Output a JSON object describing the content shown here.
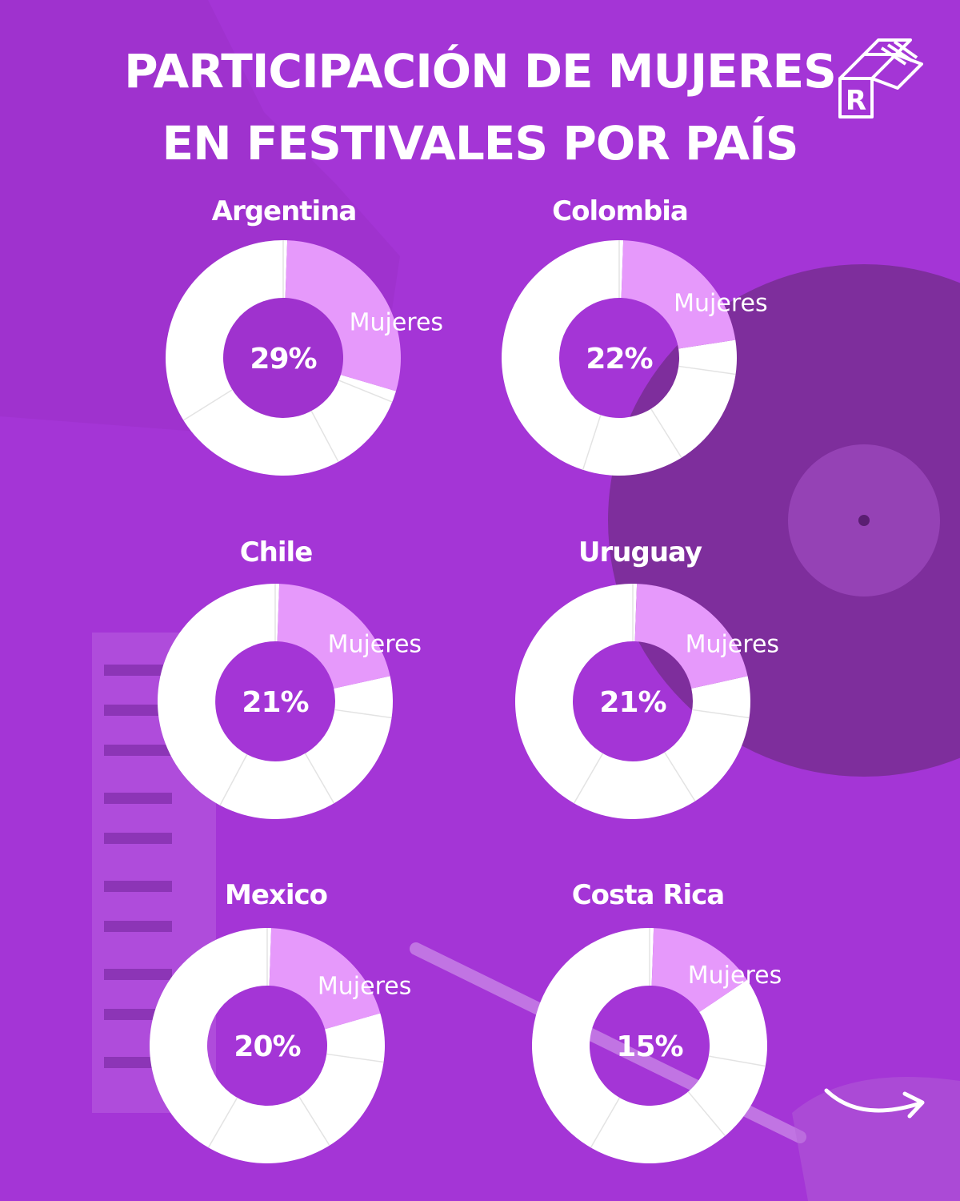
{
  "title": {
    "line1": "PARTICIPACIÓN DE MUJERES",
    "line2": "EN FESTIVALES POR PAÍS"
  },
  "logo": {
    "letter": "R"
  },
  "colors": {
    "background": "#a435d6",
    "women_slice": "#e699fb",
    "rest_slices": "#ffffff",
    "center_text": "#ffffff",
    "slice_label": "#ffffff"
  },
  "chart_data": [
    {
      "type": "pie",
      "variant": "donut",
      "title": "Argentina",
      "categories": [
        "Mujeres"
      ],
      "values": [
        29
      ],
      "center_label": "29%",
      "slice_label": "Mujeres"
    },
    {
      "type": "pie",
      "variant": "donut",
      "title": "Colombia",
      "categories": [
        "Mujeres"
      ],
      "values": [
        22
      ],
      "center_label": "22%",
      "slice_label": "Mujeres"
    },
    {
      "type": "pie",
      "variant": "donut",
      "title": "Chile",
      "categories": [
        "Mujeres"
      ],
      "values": [
        21
      ],
      "center_label": "21%",
      "slice_label": "Mujeres"
    },
    {
      "type": "pie",
      "variant": "donut",
      "title": "Uruguay",
      "categories": [
        "Mujeres"
      ],
      "values": [
        21
      ],
      "center_label": "21%",
      "slice_label": "Mujeres"
    },
    {
      "type": "pie",
      "variant": "donut",
      "title": "Mexico",
      "categories": [
        "Mujeres"
      ],
      "values": [
        20
      ],
      "center_label": "20%",
      "slice_label": "Mujeres"
    },
    {
      "type": "pie",
      "variant": "donut",
      "title": "Costa Rica",
      "categories": [
        "Mujeres"
      ],
      "values": [
        15
      ],
      "center_label": "15%",
      "slice_label": "Mujeres"
    }
  ],
  "icons": {
    "next": "arrow-right-icon",
    "brand": "records-logo-icon"
  }
}
